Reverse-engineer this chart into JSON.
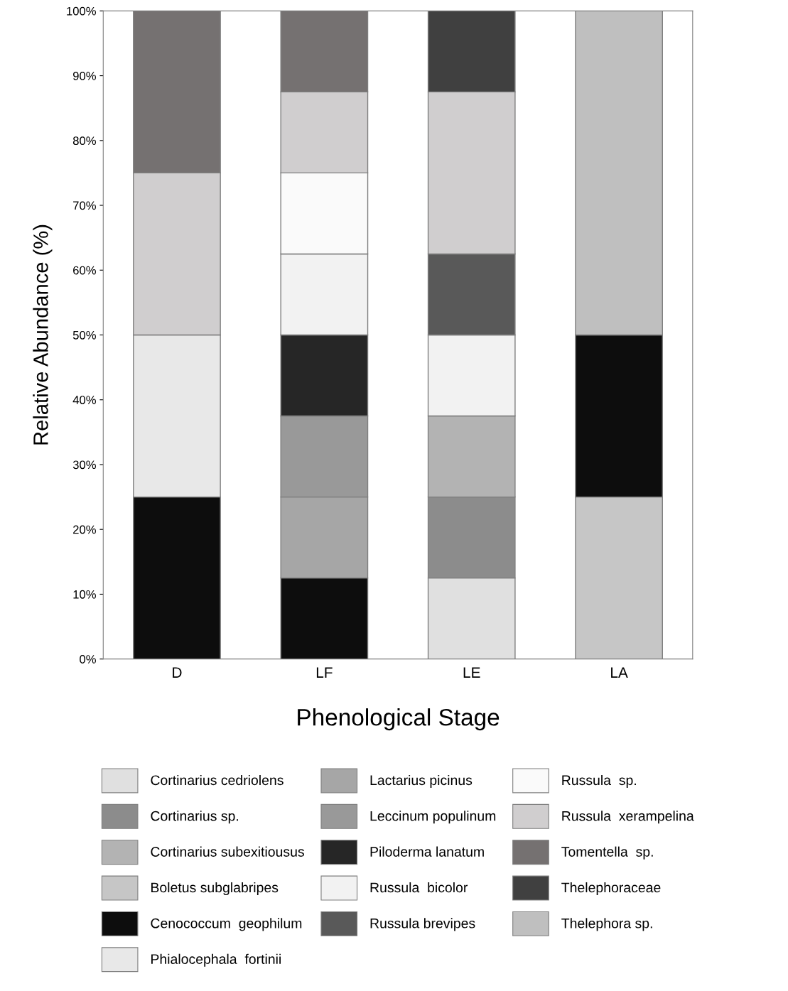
{
  "chart_data": {
    "type": "bar",
    "stacked": true,
    "xlabel": "Phenological Stage",
    "ylabel": "Relative Abundance (%)",
    "categories": [
      "D",
      "LF",
      "LE",
      "LA"
    ],
    "ylim": [
      0,
      100
    ],
    "yticks": [
      {
        "value": 0,
        "label": "0%"
      },
      {
        "value": 10,
        "label": "10%"
      },
      {
        "value": 20,
        "label": "20%"
      },
      {
        "value": 30,
        "label": "30%"
      },
      {
        "value": 40,
        "label": "40%"
      },
      {
        "value": 50,
        "label": "50%"
      },
      {
        "value": 60,
        "label": "60%"
      },
      {
        "value": 70,
        "label": "70%"
      },
      {
        "value": 80,
        "label": "80%"
      },
      {
        "value": 90,
        "label": "90%"
      },
      {
        "value": 100,
        "label": "100%"
      }
    ],
    "grid": false,
    "legend": "bottom",
    "series": [
      {
        "name": "Cortinarius cedriolens",
        "color": "#e0e0e0",
        "values": [
          0,
          0,
          12.5,
          0
        ]
      },
      {
        "name": "Cortinarius sp.",
        "color": "#8c8c8c",
        "values": [
          0,
          0,
          12.5,
          0
        ]
      },
      {
        "name": "Cortinarius subexitiousus",
        "color": "#b3b3b3",
        "values": [
          0,
          0,
          12.5,
          0
        ]
      },
      {
        "name": "Boletus subglabripes",
        "color": "#c6c6c6",
        "values": [
          0,
          0,
          0,
          25
        ]
      },
      {
        "name": "Cenococcum  geophilum",
        "color": "#0d0d0d",
        "values": [
          25,
          12.5,
          0,
          25
        ]
      },
      {
        "name": "Phialocephala  fortinii",
        "color": "#e8e8e8",
        "values": [
          25,
          0,
          0,
          0
        ]
      },
      {
        "name": "Lactarius picinus",
        "color": "#a6a6a6",
        "values": [
          0,
          12.5,
          0,
          0
        ]
      },
      {
        "name": "Leccinum populinum",
        "color": "#999999",
        "values": [
          0,
          12.5,
          0,
          0
        ]
      },
      {
        "name": "Piloderma lanatum",
        "color": "#262626",
        "values": [
          0,
          12.5,
          0,
          0
        ]
      },
      {
        "name": "Russula  bicolor",
        "color": "#f2f2f2",
        "values": [
          0,
          12.5,
          12.5,
          0
        ]
      },
      {
        "name": "Russula brevipes",
        "color": "#595959",
        "values": [
          0,
          0,
          12.5,
          0
        ]
      },
      {
        "name": "Russula  sp.",
        "color": "#fafafa",
        "values": [
          0,
          12.5,
          0,
          0
        ]
      },
      {
        "name": "Russula  xerampelina",
        "color": "#d0cecf",
        "values": [
          25,
          12.5,
          25,
          0
        ]
      },
      {
        "name": "Tomentella  sp.",
        "color": "#757171",
        "values": [
          25,
          12.5,
          0,
          0
        ]
      },
      {
        "name": "Thelephoraceae",
        "color": "#404040",
        "values": [
          0,
          0,
          12.5,
          0
        ]
      },
      {
        "name": "Thelephora sp.",
        "color": "#bfbfbf",
        "values": [
          0,
          0,
          0,
          50
        ]
      }
    ]
  }
}
